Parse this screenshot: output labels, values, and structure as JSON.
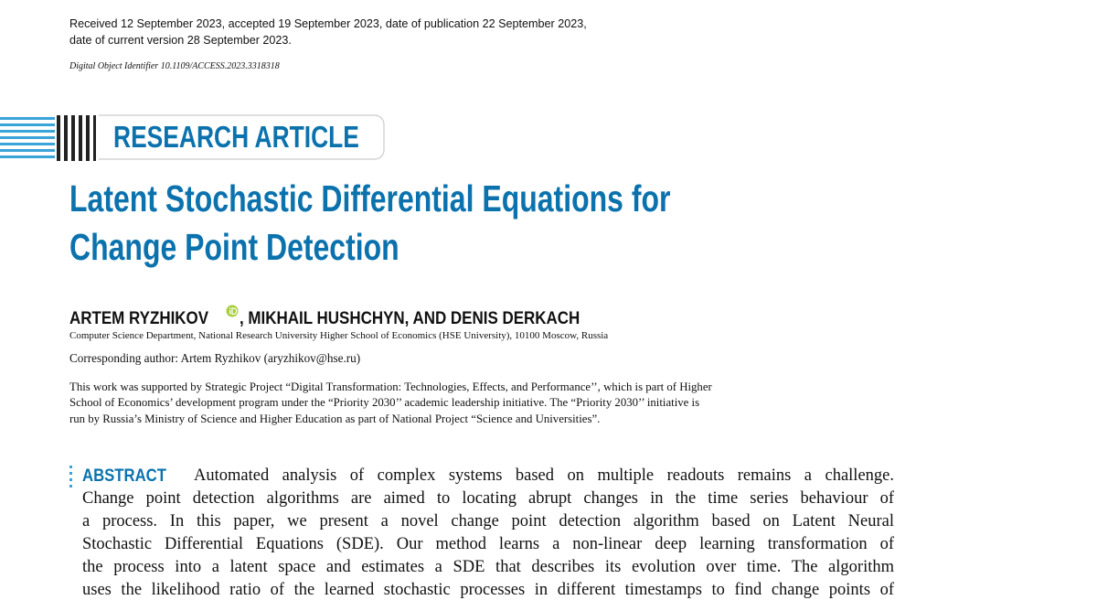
{
  "header": {
    "dates": [
      "Received 12 September 2023, accepted 19 September 2023, date of publication 22 September 2023,",
      "date of current version 28 September 2023."
    ],
    "doi": "Digital Object Identifier 10.1109/ACCESS.2023.3318318"
  },
  "article_type": "RESEARCH ARTICLE",
  "title": [
    "Latent Stochastic Differential Equations for",
    "Change Point Detection"
  ],
  "authors": [
    "ARTEM RYZHIKOV",
    ", MIKHAIL HUSHCHYN, AND DENIS DERKACH"
  ],
  "affiliation": "Computer Science Department, National Research University Higher School of Economics (HSE University), 10100 Moscow, Russia",
  "corresponding": "Corresponding author: Artem Ryzhikov (aryzhikov@hse.ru)",
  "funding": [
    "This work was supported by Strategic Project “Digital Transformation: Technologies, Effects, and Performance’’, which is part of Higher",
    "School of Economics’ development program under the “Priority 2030’’ academic leadership initiative. The “Priority 2030’’ initiative is",
    "run by Russia’s Ministry of Science and Higher Education as part of National Project “Science and Universities”."
  ],
  "abstract": {
    "label": "ABSTRACT",
    "lines": [
      "Automated analysis of complex systems based on multiple readouts remains a challenge.",
      "Change point detection algorithms are aimed to locating abrupt changes in the time series behaviour of",
      "a process. In this paper, we present a novel change point detection algorithm based on Latent Neural",
      "Stochastic Differential Equations (SDE). Our method learns a non-linear deep learning transformation of",
      "the process into a latent space and estimates a SDE that describes its evolution over time. The algorithm",
      "uses the likelihood ratio of the learned stochastic processes in different timestamps to find change points of"
    ]
  }
}
